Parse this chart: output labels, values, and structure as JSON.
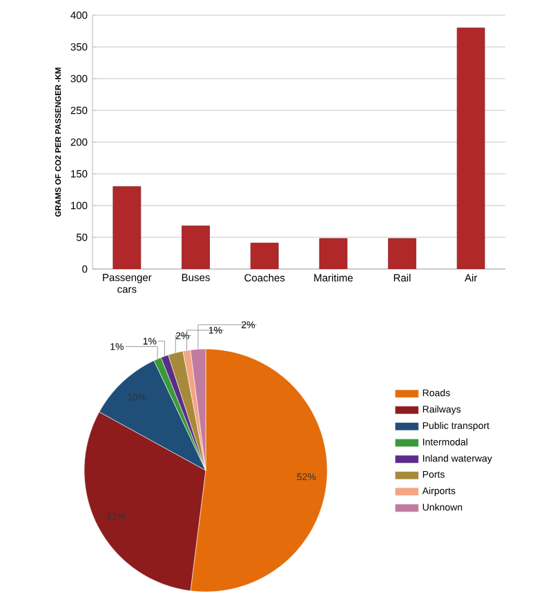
{
  "chart_data": [
    {
      "type": "bar",
      "ylabel": "GRAMS OF CO2 PER PASSENGER -KM",
      "categories": [
        "Passenger cars",
        "Buses",
        "Coaches",
        "Maritime",
        "Rail",
        "Air"
      ],
      "values": [
        130,
        68,
        41,
        48,
        48,
        380
      ],
      "color": "#b0282a",
      "ylim": [
        0,
        400
      ],
      "yticks": [
        0,
        50,
        100,
        150,
        200,
        250,
        300,
        350,
        400
      ],
      "grid": "y"
    },
    {
      "type": "pie",
      "categories": [
        "Roads",
        "Railways",
        "Public transport",
        "Intermodal",
        "Inland waterway",
        "Ports",
        "Airports",
        "Unknown"
      ],
      "values": [
        52,
        31,
        10,
        1,
        1,
        2,
        1,
        2
      ],
      "colors": [
        "#e46c0a",
        "#8e1c1c",
        "#1f4e79",
        "#3a9a3a",
        "#5b2d8a",
        "#a68a3a",
        "#f4a582",
        "#c27ba0"
      ],
      "value_labels": [
        "52%",
        "31%",
        "10%",
        "1%",
        "1%",
        "2%",
        "1%",
        "2%"
      ],
      "legend": "right"
    }
  ]
}
